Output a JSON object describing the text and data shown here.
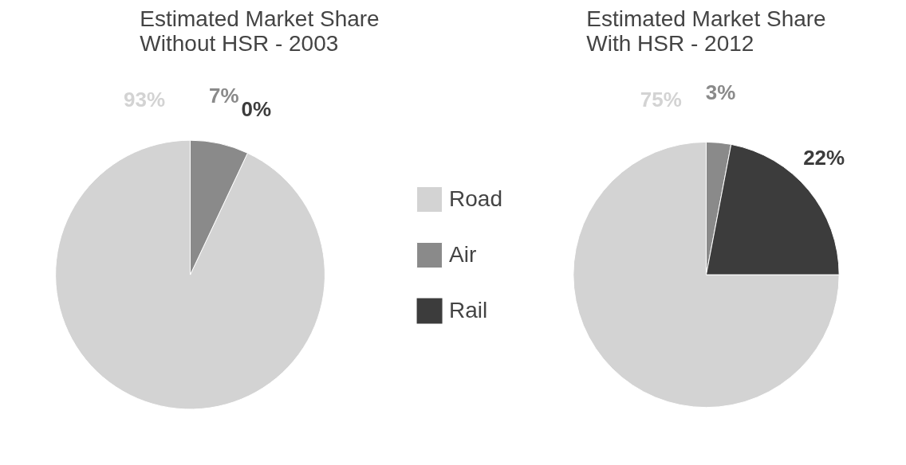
{
  "chart_data": [
    {
      "type": "pie",
      "title": "Estimated Market Share\nWithout HSR - 2003",
      "categories": [
        "Road",
        "Air",
        "Rail"
      ],
      "values": [
        93,
        7,
        0
      ],
      "value_labels": [
        "93%",
        "7%",
        "0%"
      ],
      "colors": [
        "#d3d3d3",
        "#8a8a8a",
        "#3c3c3c"
      ],
      "data_labels": true,
      "legend": "right"
    },
    {
      "type": "pie",
      "title": "Estimated Market Share\nWith HSR - 2012",
      "categories": [
        null,
        null,
        null
      ],
      "values": [
        75,
        3,
        22
      ],
      "value_labels": [
        "75%",
        "3%",
        "22%"
      ],
      "colors": [
        "#d3d3d3",
        "#8a8a8a",
        "#3c3c3c"
      ],
      "data_labels": true,
      "legend": false
    }
  ]
}
